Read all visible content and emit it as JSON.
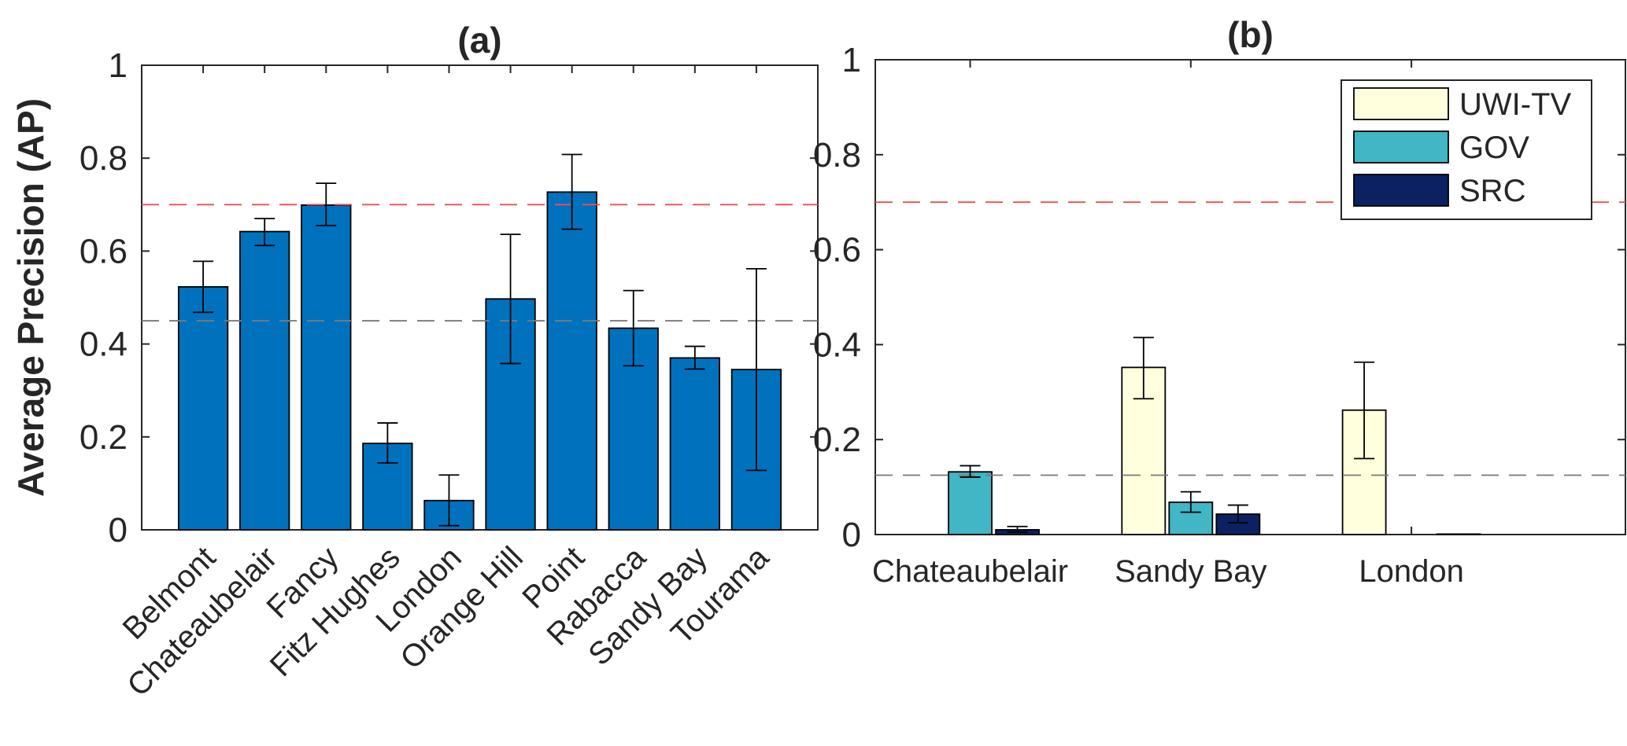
{
  "chart_data": [
    {
      "panel": "a",
      "type": "bar",
      "title": "(a)",
      "xlabel": "",
      "ylabel": "Average Precision (AP)",
      "ylim": [
        0,
        1
      ],
      "yticks": [
        0,
        0.2,
        0.4,
        0.6,
        0.8,
        1
      ],
      "ytick_labels": [
        "0",
        "0.2",
        "0.4",
        "0.6",
        "0.8",
        "1"
      ],
      "categories": [
        "Belmont",
        "Chateaubelair",
        "Fancy",
        "Fitz Hughes",
        "London",
        "Orange Hill",
        "Point",
        "Rabacca",
        "Sandy Bay",
        "Tourama"
      ],
      "values": [
        0.523,
        0.642,
        0.699,
        0.186,
        0.063,
        0.497,
        0.727,
        0.434,
        0.37,
        0.345
      ],
      "err_low": [
        0.468,
        0.612,
        0.655,
        0.144,
        0.009,
        0.358,
        0.647,
        0.353,
        0.346,
        0.128
      ],
      "err_high": [
        0.578,
        0.67,
        0.746,
        0.23,
        0.118,
        0.636,
        0.808,
        0.515,
        0.395,
        0.562
      ],
      "reference_lines": [
        {
          "value": 0.7,
          "color": "#e8514f"
        },
        {
          "value": 0.45,
          "color": "#7a7a7a"
        }
      ],
      "bar_color": "#0072bd"
    },
    {
      "panel": "b",
      "type": "bar",
      "title": "(b)",
      "xlabel": "",
      "ylabel": "",
      "ylim": [
        0,
        1
      ],
      "yticks": [
        0,
        0.2,
        0.4,
        0.6,
        0.8,
        1
      ],
      "ytick_labels": [
        "0",
        "0.2",
        "0.4",
        "0.6",
        "0.8",
        "1"
      ],
      "categories": [
        "Chateaubelair",
        "Sandy Bay",
        "London"
      ],
      "series": [
        {
          "name": "UWI-TV",
          "color": "#ffffdd",
          "values": [
            0,
            0.352,
            0.262
          ],
          "err_low": [
            null,
            0.286,
            0.16
          ],
          "err_high": [
            null,
            0.415,
            0.363
          ]
        },
        {
          "name": "GOV",
          "color": "#41b6c4",
          "values": [
            0.132,
            0.068,
            0
          ],
          "err_low": [
            0.121,
            0.047,
            null
          ],
          "err_high": [
            0.145,
            0.09,
            null
          ]
        },
        {
          "name": "SRC",
          "color": "#0c2161",
          "values": [
            0.01,
            0.043,
            0.001
          ],
          "err_low": [
            0.005,
            0.025,
            null
          ],
          "err_high": [
            0.017,
            0.062,
            null
          ]
        }
      ],
      "reference_lines": [
        {
          "value": 0.7,
          "color": "#e8514f"
        },
        {
          "value": 0.125,
          "color": "#7a7a7a"
        }
      ],
      "legend_position": "top-right"
    }
  ]
}
